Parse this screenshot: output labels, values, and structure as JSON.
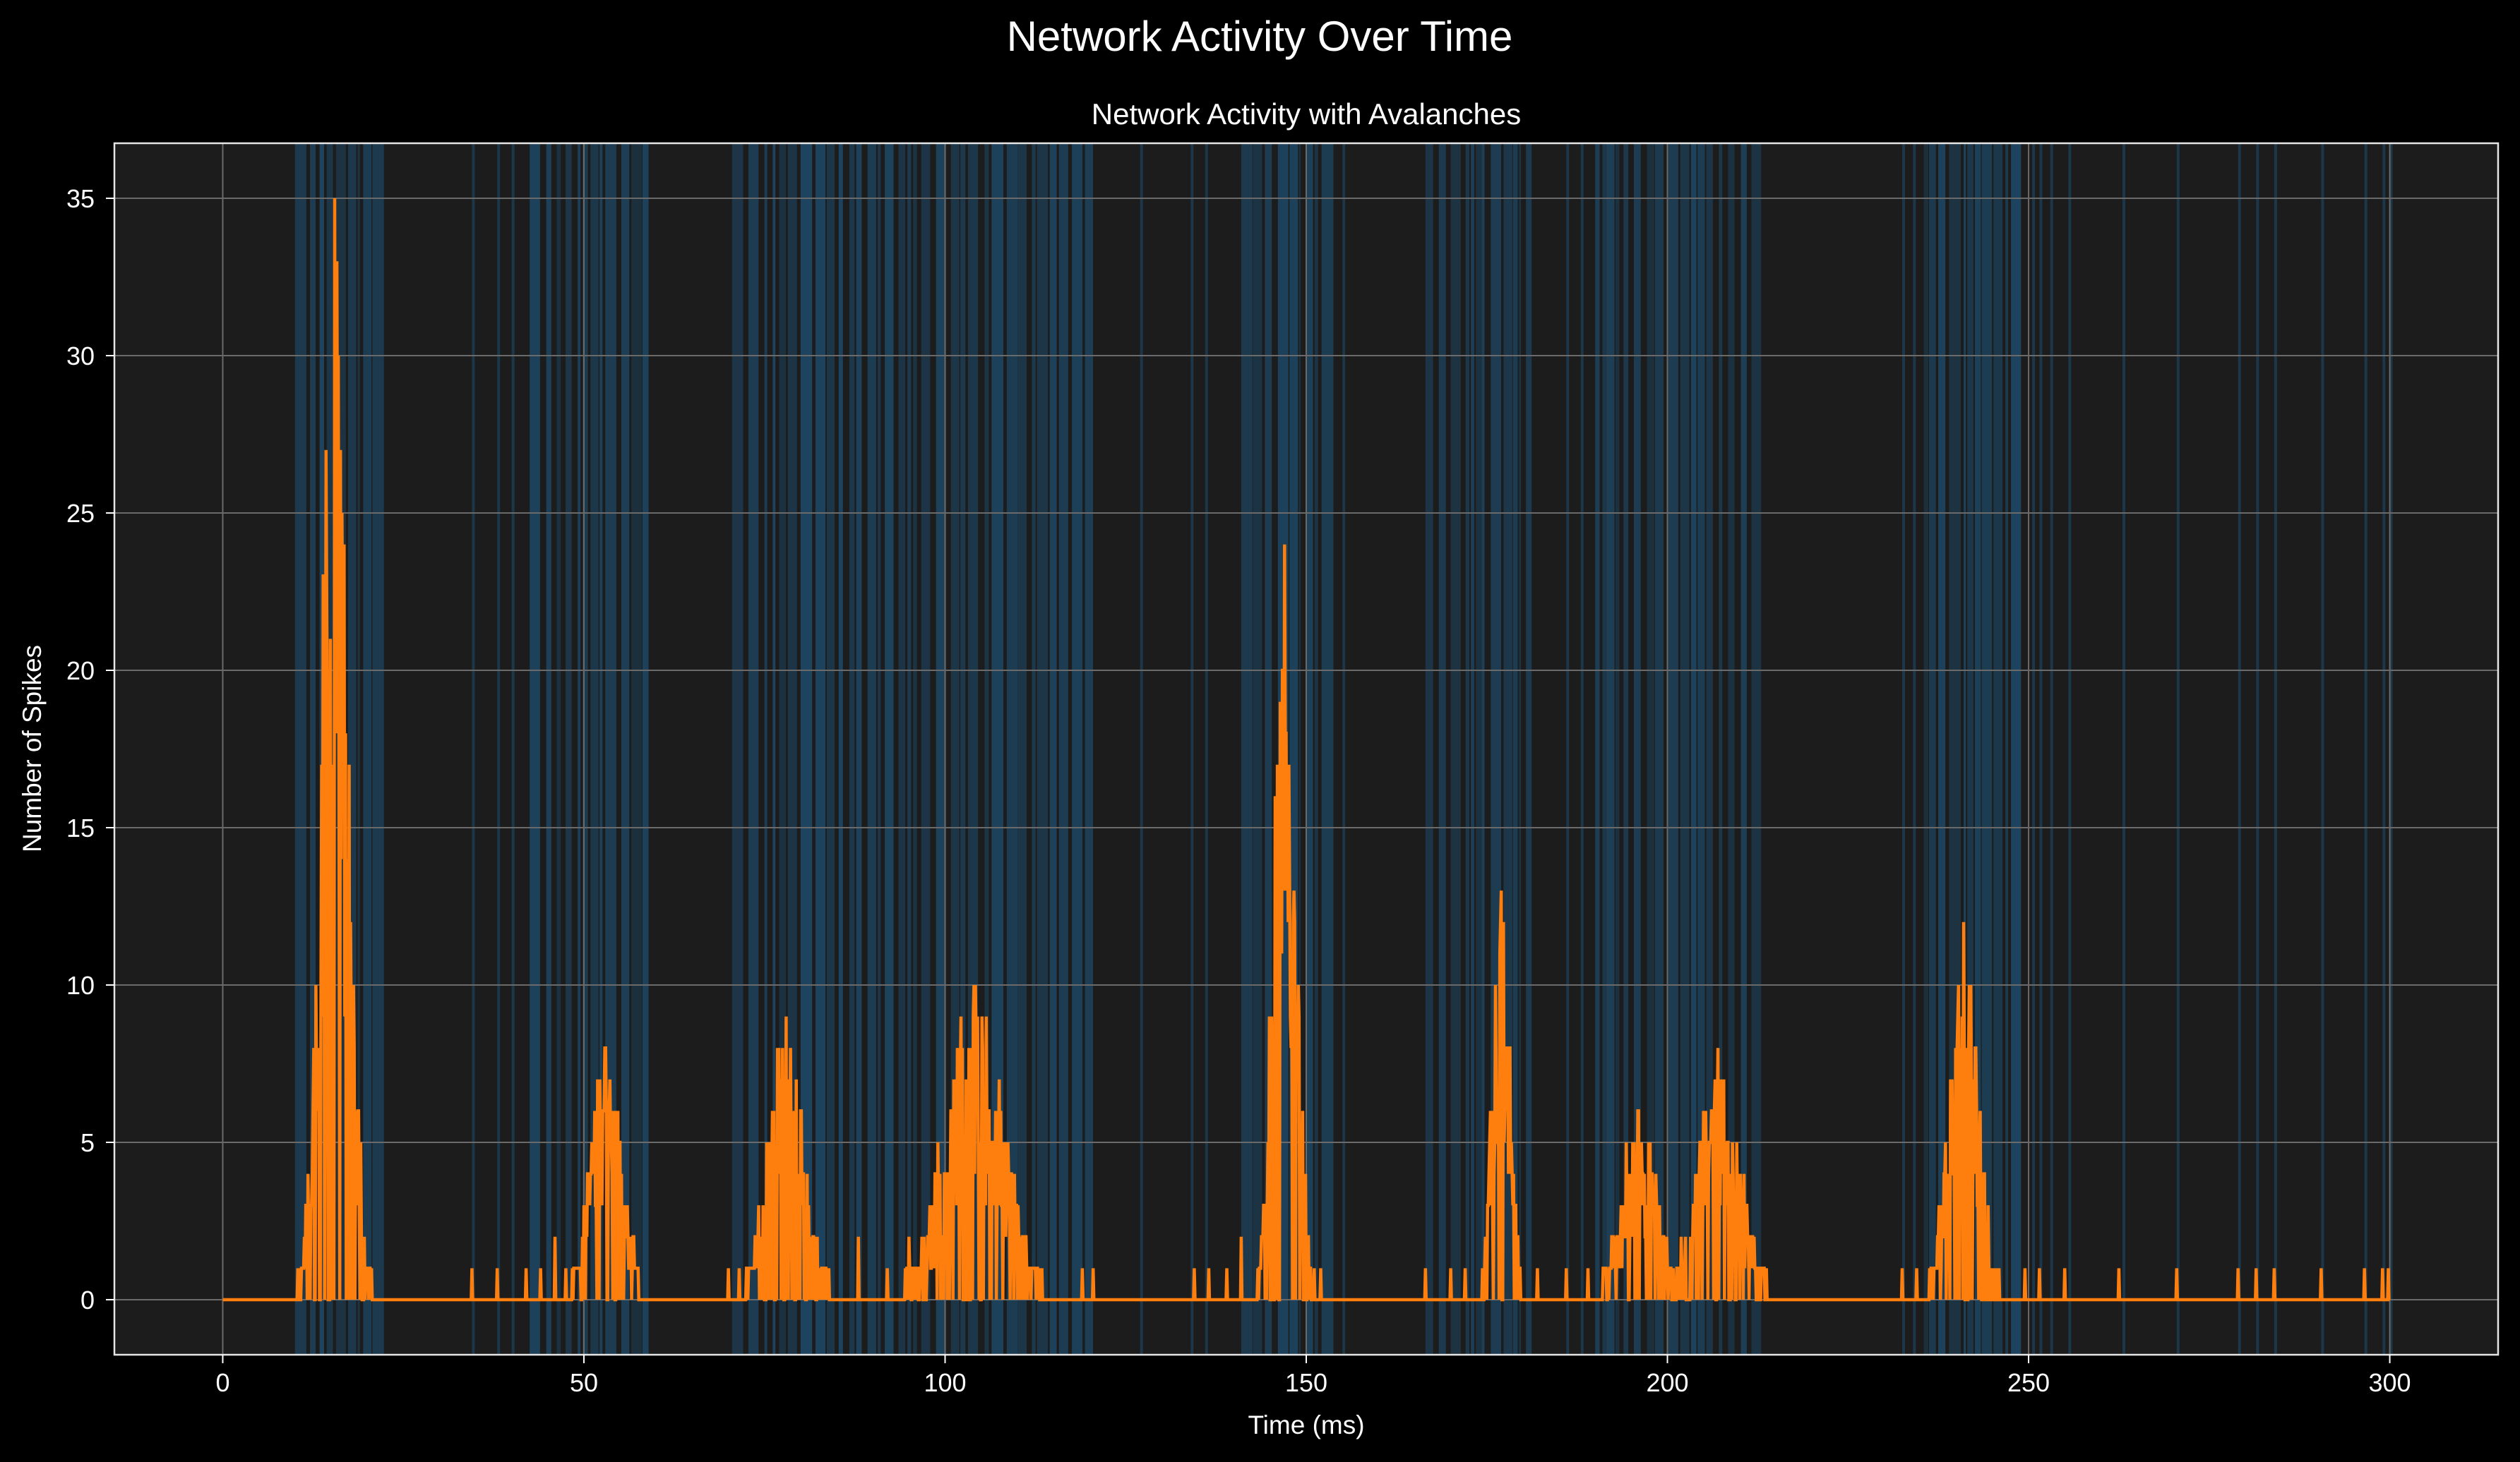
{
  "figure": {
    "suptitle": "Network Activity Over Time"
  },
  "colors": {
    "background": "#000000",
    "axes_face": "#1c1c1c",
    "grid": "#6a6a6a",
    "line": "#ff7f0e",
    "avalanche_band": "#1f77b4",
    "text": "#ffffff"
  },
  "chart_data": {
    "type": "line",
    "title": "Network Activity with Avalanches",
    "xlabel": "Time (ms)",
    "ylabel": "Number of Spikes",
    "xlim": [
      -15,
      315
    ],
    "ylim": [
      -1.75,
      36.75
    ],
    "xticks": [
      0,
      50,
      100,
      150,
      200,
      250,
      300
    ],
    "yticks": [
      0,
      5,
      10,
      15,
      20,
      25,
      30,
      35
    ],
    "grid": true,
    "legend": "none",
    "series": [
      {
        "step_ms": 0.1,
        "x_range": [
          0,
          300
        ],
        "peaks": [
          {
            "t": 15.5,
            "height": 35,
            "width": 1.8
          },
          {
            "t": 53,
            "height": 8,
            "width": 2.2
          },
          {
            "t": 78,
            "height": 9,
            "width": 2.5
          },
          {
            "t": 104,
            "height": 10,
            "width": 4
          },
          {
            "t": 147,
            "height": 24,
            "width": 1.5
          },
          {
            "t": 177,
            "height": 13,
            "width": 1.2
          },
          {
            "t": 196,
            "height": 6,
            "width": 2.5
          },
          {
            "t": 207,
            "height": 8,
            "width": 3
          },
          {
            "t": 241,
            "height": 12,
            "width": 2
          }
        ],
        "sparse_spikes": [
          {
            "t": 34.5,
            "v": 1
          },
          {
            "t": 38,
            "v": 1
          },
          {
            "t": 42,
            "v": 1
          },
          {
            "t": 44,
            "v": 1
          },
          {
            "t": 46,
            "v": 2
          },
          {
            "t": 47.5,
            "v": 1
          },
          {
            "t": 70,
            "v": 1
          },
          {
            "t": 71.5,
            "v": 1
          },
          {
            "t": 88,
            "v": 2
          },
          {
            "t": 92,
            "v": 1
          },
          {
            "t": 95,
            "v": 2
          },
          {
            "t": 98,
            "v": 1
          },
          {
            "t": 119,
            "v": 1
          },
          {
            "t": 120.5,
            "v": 1
          },
          {
            "t": 134.5,
            "v": 1
          },
          {
            "t": 136.5,
            "v": 1
          },
          {
            "t": 139,
            "v": 1
          },
          {
            "t": 141,
            "v": 2
          },
          {
            "t": 152,
            "v": 1
          },
          {
            "t": 166.5,
            "v": 1
          },
          {
            "t": 170,
            "v": 1
          },
          {
            "t": 172,
            "v": 1
          },
          {
            "t": 182,
            "v": 1
          },
          {
            "t": 186,
            "v": 1
          },
          {
            "t": 189,
            "v": 1
          },
          {
            "t": 213,
            "v": 1
          },
          {
            "t": 232.5,
            "v": 1
          },
          {
            "t": 234.5,
            "v": 1
          },
          {
            "t": 249.5,
            "v": 1
          },
          {
            "t": 251.5,
            "v": 1
          },
          {
            "t": 255,
            "v": 1
          },
          {
            "t": 262.5,
            "v": 1
          },
          {
            "t": 270.5,
            "v": 1
          },
          {
            "t": 279,
            "v": 1
          },
          {
            "t": 281.5,
            "v": 1
          },
          {
            "t": 284,
            "v": 1
          },
          {
            "t": 290.5,
            "v": 1
          },
          {
            "t": 296.5,
            "v": 1
          },
          {
            "t": 299,
            "v": 1
          },
          {
            "t": 299.8,
            "v": 1
          }
        ]
      }
    ],
    "avalanche_regions": {
      "dense": [
        [
          10,
          21.5
        ],
        [
          42.5,
          59
        ],
        [
          70.5,
          120.5
        ],
        [
          141,
          152.5
        ],
        [
          166.5,
          181
        ],
        [
          190,
          212.5
        ],
        [
          235.5,
          248.5
        ]
      ],
      "isolated": [
        34.5,
        38,
        40,
        127,
        134,
        136,
        155,
        186,
        188,
        232.5,
        234,
        250.5,
        251.5,
        253,
        255.5,
        263,
        270.5,
        279,
        281.5,
        284,
        290.5,
        296.5,
        299,
        300
      ]
    }
  }
}
